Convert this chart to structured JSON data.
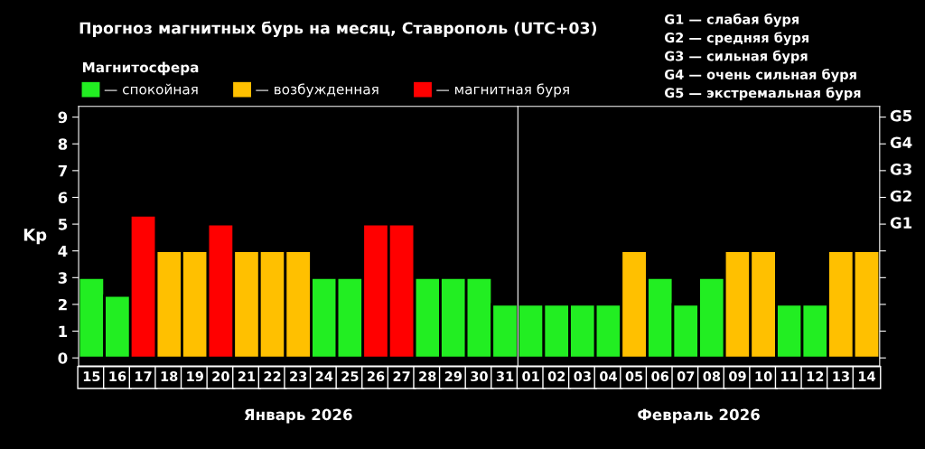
{
  "chart_data": [
    {
      "type": "bar",
      "title": "Прогноз магнитных бурь на месяц, Ставрополь (UTC+03)",
      "categories": [
        "15",
        "16",
        "17",
        "18",
        "19",
        "20",
        "21",
        "22",
        "23",
        "24",
        "25",
        "26",
        "27",
        "28",
        "29",
        "30",
        "31"
      ],
      "series": [
        {
          "name": "— спокойная",
          "color": "#22ee22",
          "values": [
            3,
            2.33,
            null,
            null,
            null,
            null,
            null,
            null,
            null,
            3,
            3,
            null,
            null,
            3,
            3,
            3,
            2
          ]
        },
        {
          "name": "— возбужденная",
          "color": "#ffc000",
          "values": [
            null,
            null,
            null,
            4,
            4,
            null,
            4,
            4,
            4,
            null,
            null,
            null,
            null,
            null,
            null,
            null,
            null
          ]
        },
        {
          "name": "— магнитная буря",
          "color": "#ff0000",
          "values": [
            null,
            null,
            5.33,
            null,
            null,
            5,
            null,
            null,
            null,
            null,
            null,
            5,
            5,
            null,
            null,
            null,
            null
          ]
        }
      ],
      "legend_title": "Магнитосфера",
      "legend": "top",
      "ylabel": "Kp",
      "xlabel": "Январь 2026",
      "ylim": [
        -0.3,
        9.4
      ],
      "yticks": [
        0,
        1,
        2,
        3,
        4,
        5,
        6,
        7,
        8,
        9
      ],
      "annotations": [
        "G1 — слабая буря",
        "G2 — средняя буря",
        "G3 — сильная буря",
        "G4 — очень сильная буря",
        "G5 — экстремальная буря"
      ],
      "grid": false
    },
    {
      "type": "bar",
      "categories": [
        "01",
        "02",
        "03",
        "04",
        "05",
        "06",
        "07",
        "08",
        "09",
        "10",
        "11",
        "12",
        "13",
        "14"
      ],
      "series": [
        {
          "color": "#22ee22",
          "values": [
            2,
            2,
            2,
            2,
            null,
            3,
            2,
            3,
            null,
            null,
            2,
            2,
            null,
            null
          ]
        },
        {
          "color": "#ffc000",
          "values": [
            null,
            null,
            null,
            null,
            4,
            null,
            null,
            null,
            4,
            4,
            null,
            null,
            4,
            4
          ]
        }
      ],
      "xlabel": "Февраль 2026",
      "ylim": [
        -0.3,
        9.4
      ],
      "yticks": [
        0,
        1,
        2,
        3,
        4,
        5,
        6,
        7,
        8,
        9
      ],
      "tick_labels": "x",
      "annotations": [
        "G1",
        "G2",
        "G3",
        "G4",
        "G5"
      ],
      "grid": false
    }
  ]
}
